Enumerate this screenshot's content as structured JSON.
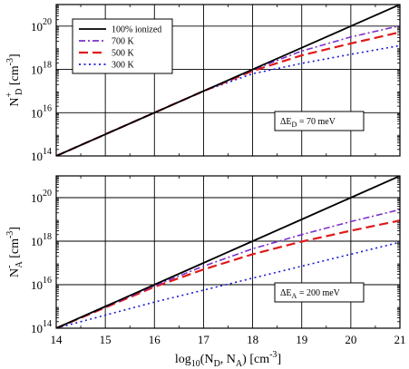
{
  "chart_data": [
    {
      "type": "line",
      "panel": "top",
      "ylabel": {
        "main": "N",
        "sup": "+",
        "sub": "D",
        "units": "[cm",
        "units_exp": "-3",
        "units_close": "]"
      },
      "xlim": [
        14,
        21
      ],
      "ylim_log10": [
        14,
        21
      ],
      "grid": true,
      "legend_position": "top-left",
      "x_ticks": [
        14,
        15,
        16,
        17,
        18,
        19,
        20,
        21
      ],
      "y_tick_labels": [
        {
          "base": "10",
          "exp": "14",
          "at": 14
        },
        {
          "base": "10",
          "exp": "16",
          "at": 16
        },
        {
          "base": "10",
          "exp": "18",
          "at": 18
        },
        {
          "base": "10",
          "exp": "20",
          "at": 20
        }
      ],
      "annotation": {
        "prefix": "ΔE",
        "sub": "D",
        "rest": " = 70 meV"
      },
      "series": [
        {
          "name": "100% ionized",
          "color": "#000000",
          "dash": "solid",
          "x": [
            14,
            15,
            16,
            17,
            18,
            19,
            20,
            21
          ],
          "y": [
            14,
            15,
            16,
            17,
            18,
            19,
            20,
            21
          ]
        },
        {
          "name": "700 K",
          "color": "#7b2fd0",
          "dash": "dashdot",
          "x": [
            14,
            15,
            16,
            17,
            18,
            19,
            20,
            21
          ],
          "y": [
            14,
            15,
            16,
            17,
            17.98,
            18.85,
            19.5,
            20.02
          ]
        },
        {
          "name": "500 K",
          "color": "#e11919",
          "dash": "dashed",
          "x": [
            14,
            15,
            16,
            17,
            18,
            19,
            20,
            21
          ],
          "y": [
            14,
            15,
            16,
            17,
            17.93,
            18.65,
            19.2,
            19.72
          ]
        },
        {
          "name": "300 K",
          "color": "#1a1ad8",
          "dash": "dotted",
          "x": [
            14,
            15,
            16,
            17,
            18,
            19,
            20,
            21
          ],
          "y": [
            14,
            15,
            16,
            17,
            17.8,
            18.28,
            18.7,
            19.1
          ]
        }
      ]
    },
    {
      "type": "line",
      "panel": "bottom",
      "xlabel": {
        "main": "log",
        "sub": "10",
        "mid": "(N",
        "sub2": "D",
        "mid2": ", N",
        "sub3": "A",
        "mid3": ")  [cm",
        "exp": "-3",
        "close": "]"
      },
      "ylabel": {
        "main": "N",
        "sup": "-",
        "sub": "A",
        "units": "[cm",
        "units_exp": "-3",
        "units_close": "]"
      },
      "xlim": [
        14,
        21
      ],
      "ylim_log10": [
        14,
        21
      ],
      "grid": true,
      "x_ticks": [
        14,
        15,
        16,
        17,
        18,
        19,
        20,
        21
      ],
      "x_tick_labels": [
        "14",
        "15",
        "16",
        "17",
        "18",
        "19",
        "20",
        "21"
      ],
      "y_tick_labels": [
        {
          "base": "10",
          "exp": "14",
          "at": 14
        },
        {
          "base": "10",
          "exp": "16",
          "at": 16
        },
        {
          "base": "10",
          "exp": "18",
          "at": 18
        },
        {
          "base": "10",
          "exp": "20",
          "at": 20
        }
      ],
      "annotation": {
        "prefix": "ΔE",
        "sub": "A",
        "rest": " = 200 meV"
      },
      "series": [
        {
          "name": "100% ionized",
          "color": "#000000",
          "dash": "solid",
          "x": [
            14,
            15,
            16,
            17,
            18,
            19,
            20,
            21
          ],
          "y": [
            14,
            15,
            16,
            17,
            18,
            19,
            20,
            21
          ]
        },
        {
          "name": "700 K",
          "color": "#7b2fd0",
          "dash": "dashdot",
          "x": [
            14,
            15,
            16,
            17,
            18,
            19,
            20,
            21
          ],
          "y": [
            14,
            14.98,
            15.95,
            16.85,
            17.65,
            18.3,
            18.9,
            19.45
          ]
        },
        {
          "name": "500 K",
          "color": "#e11919",
          "dash": "dashed",
          "x": [
            14,
            15,
            16,
            17,
            18,
            19,
            20,
            21
          ],
          "y": [
            14,
            14.95,
            15.9,
            16.7,
            17.4,
            17.98,
            18.48,
            18.95
          ]
        },
        {
          "name": "300 K",
          "color": "#1a1ad8",
          "dash": "dotted",
          "x": [
            14,
            15,
            16,
            17,
            18,
            19,
            20,
            21
          ],
          "y": [
            14,
            14.6,
            15.2,
            15.75,
            16.3,
            16.85,
            17.4,
            17.95
          ]
        }
      ]
    }
  ]
}
